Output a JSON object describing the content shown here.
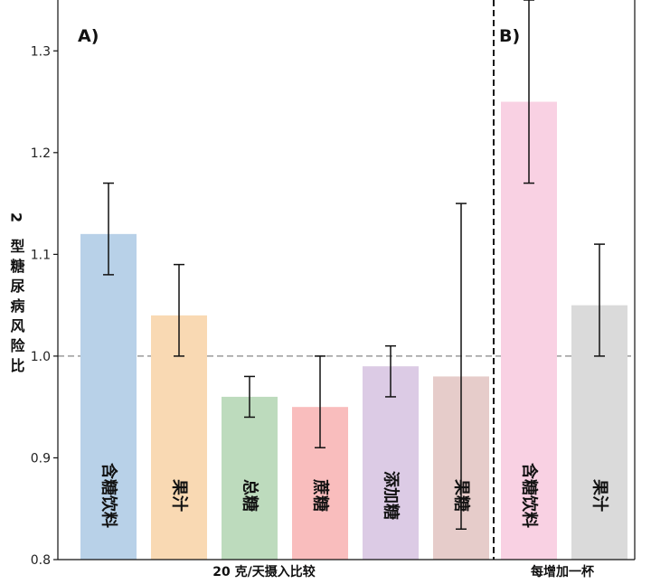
{
  "chart_data": {
    "type": "bar",
    "ylabel": "2 型糖尿病风险比",
    "ylim": [
      0.8,
      1.35
    ],
    "yticks": [
      "0.8",
      "0.9",
      "1.0",
      "1.1",
      "1.2",
      "1.3"
    ],
    "reference_line": 1.0,
    "panels": [
      {
        "label": "A)",
        "group_label": "20 克/天摄入比较",
        "categories": [
          "含糖饮料",
          "果汁",
          "总糖",
          "蔗糖",
          "添加糖",
          "果糖"
        ],
        "values": [
          1.12,
          1.04,
          0.96,
          0.95,
          0.99,
          0.98
        ],
        "ci_low": [
          1.08,
          1.0,
          0.94,
          0.91,
          0.96,
          0.83
        ],
        "ci_high": [
          1.17,
          1.09,
          0.98,
          1.0,
          1.01,
          1.15
        ],
        "colors": [
          "#b8d1e8",
          "#f9d9b3",
          "#bddbbd",
          "#f9bdbd",
          "#dccbe5",
          "#e6ccca"
        ]
      },
      {
        "label": "B)",
        "group_label": "每增加一杯",
        "categories": [
          "含糖饮料",
          "果汁"
        ],
        "values": [
          1.25,
          1.05
        ],
        "ci_low": [
          1.17,
          1.0
        ],
        "ci_high": [
          1.35,
          1.11
        ],
        "colors": [
          "#f9d1e3",
          "#dadada"
        ]
      }
    ]
  }
}
